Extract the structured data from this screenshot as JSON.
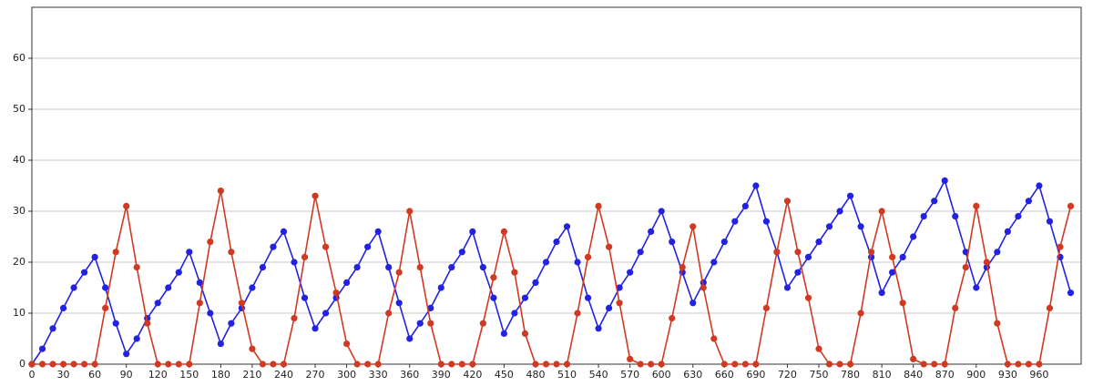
{
  "chart_data": {
    "type": "line",
    "x": [
      0,
      10,
      20,
      30,
      40,
      50,
      60,
      70,
      80,
      90,
      100,
      110,
      120,
      130,
      140,
      150,
      160,
      170,
      180,
      190,
      200,
      210,
      220,
      230,
      240,
      250,
      260,
      270,
      280,
      290,
      300,
      310,
      320,
      330,
      340,
      350,
      360,
      370,
      380,
      390,
      400,
      410,
      420,
      430,
      440,
      450,
      460,
      470,
      480,
      490,
      500,
      510,
      520,
      530,
      540,
      550,
      560,
      570,
      580,
      590,
      600,
      610,
      620,
      630,
      640,
      650,
      660,
      670,
      680,
      690,
      700,
      710,
      720,
      730,
      740,
      750,
      760,
      770,
      780,
      790,
      800,
      810,
      820,
      830,
      840,
      850,
      860,
      870,
      880,
      890,
      900,
      910,
      920,
      930,
      940,
      950,
      960,
      970,
      980,
      990
    ],
    "series": [
      {
        "color": "#2222e0",
        "values": [
          0,
          3,
          7,
          11,
          15,
          18,
          21,
          15,
          8,
          2,
          5,
          9,
          12,
          15,
          18,
          22,
          16,
          10,
          4,
          8,
          11,
          15,
          19,
          23,
          26,
          20,
          13,
          7,
          10,
          13,
          16,
          19,
          23,
          26,
          19,
          12,
          5,
          8,
          11,
          15,
          19,
          22,
          26,
          19,
          13,
          6,
          10,
          13,
          16,
          20,
          24,
          27,
          20,
          13,
          7,
          11,
          15,
          18,
          22,
          26,
          30,
          24,
          18,
          12,
          16,
          20,
          24,
          28,
          31,
          35,
          28,
          22,
          15,
          18,
          21,
          24,
          27,
          30,
          33,
          27,
          21,
          14,
          18,
          21,
          25,
          29,
          32,
          36,
          29,
          22,
          15,
          19,
          22,
          26,
          29,
          32,
          35,
          28,
          21,
          14
        ]
      },
      {
        "color": "#d03a22",
        "values": [
          0,
          0,
          0,
          0,
          0,
          0,
          0,
          11,
          22,
          31,
          19,
          8,
          0,
          0,
          0,
          0,
          12,
          24,
          34,
          22,
          12,
          3,
          0,
          0,
          0,
          9,
          21,
          33,
          23,
          14,
          4,
          0,
          0,
          0,
          10,
          18,
          30,
          19,
          8,
          0,
          0,
          0,
          0,
          8,
          17,
          26,
          18,
          6,
          0,
          0,
          0,
          0,
          10,
          21,
          31,
          23,
          12,
          1,
          0,
          0,
          0,
          9,
          19,
          27,
          15,
          5,
          0,
          0,
          0,
          0,
          11,
          22,
          32,
          22,
          13,
          3,
          0,
          0,
          0,
          10,
          22,
          30,
          21,
          12,
          1,
          0,
          0,
          0,
          11,
          19,
          31,
          20,
          8,
          0,
          0,
          0,
          0,
          11,
          23,
          31
        ]
      }
    ],
    "xlim": [
      0,
      1000
    ],
    "ylim": [
      0,
      70
    ],
    "xticks": [
      0,
      30,
      60,
      90,
      120,
      150,
      180,
      210,
      240,
      270,
      300,
      330,
      360,
      390,
      420,
      450,
      480,
      510,
      540,
      570,
      600,
      630,
      660,
      690,
      720,
      750,
      780,
      810,
      840,
      870,
      900,
      930,
      960
    ],
    "yticks": [
      0,
      10,
      20,
      30,
      40,
      50,
      60
    ],
    "grid": true
  }
}
